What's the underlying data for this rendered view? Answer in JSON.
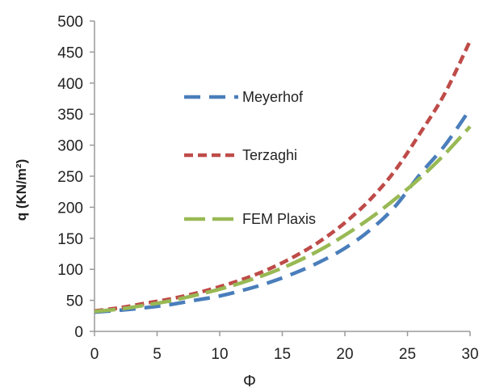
{
  "chart_data": {
    "type": "line",
    "xlabel": "Φ",
    "ylabel": "q (KN/m²)",
    "xlim": [
      0,
      30
    ],
    "ylim": [
      0,
      500
    ],
    "xticks": [
      "0",
      "5",
      "10",
      "15",
      "20",
      "25",
      "30"
    ],
    "yticks": [
      "0",
      "50",
      "100",
      "150",
      "200",
      "250",
      "300",
      "350",
      "400",
      "450",
      "500"
    ],
    "grid": false,
    "legend_placement": "center",
    "series": [
      {
        "name": "Meyerhof",
        "color": "#4a7ebb",
        "x": [
          0,
          2,
          4,
          6,
          8,
          10,
          12,
          14,
          16,
          18,
          20,
          22,
          24,
          26,
          28,
          30
        ],
        "values": [
          31,
          34,
          38,
          43,
          50,
          57,
          67,
          79,
          94,
          112,
          134,
          163,
          201,
          253,
          300,
          358
        ]
      },
      {
        "name": "Terzaghi",
        "color": "#be4b48",
        "x": [
          0,
          2,
          4,
          6,
          8,
          10,
          12,
          14,
          16,
          18,
          20,
          22,
          24,
          26,
          28,
          30
        ],
        "values": [
          33,
          38,
          45,
          52,
          61,
          72,
          85,
          101,
          121,
          145,
          175,
          212,
          259,
          319,
          384,
          468
        ]
      },
      {
        "name": "FEM Plaxis",
        "color": "#98b954",
        "x": [
          0,
          2,
          4,
          6,
          8,
          10,
          12,
          14,
          16,
          18,
          20,
          22,
          24,
          26,
          28,
          30
        ],
        "values": [
          32,
          36,
          42,
          49,
          58,
          68,
          80,
          94,
          111,
          131,
          155,
          182,
          213,
          247,
          286,
          330
        ]
      }
    ]
  }
}
